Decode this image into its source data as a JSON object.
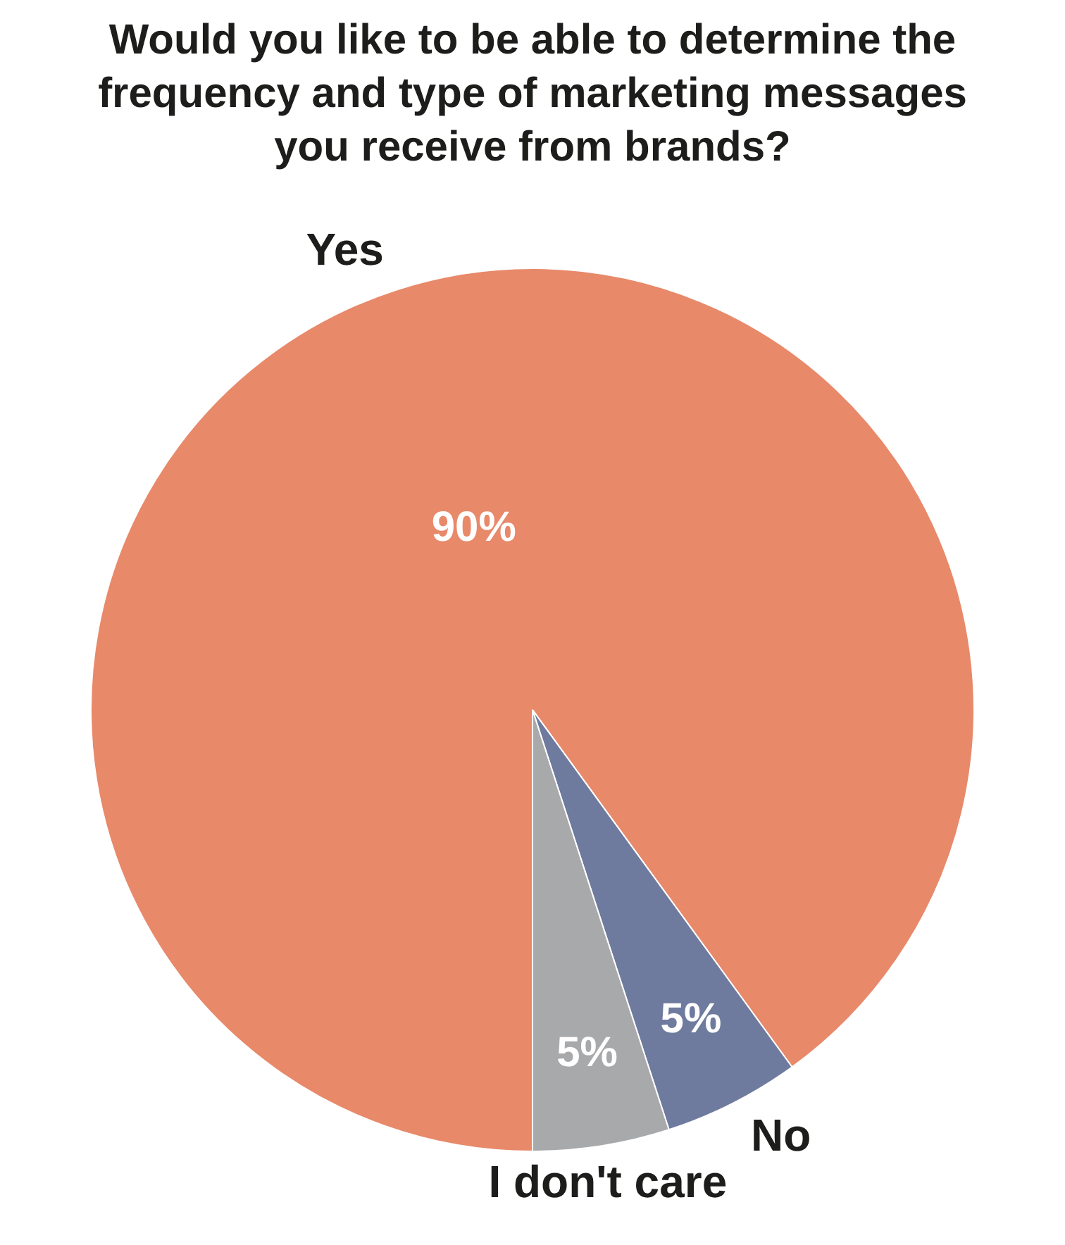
{
  "chart_data": {
    "type": "pie",
    "title": "Would you like to be able to determine the frequency and type of marketing messages you receive from brands?",
    "categories": [
      "Yes",
      "No",
      "I don't care"
    ],
    "values": [
      90,
      5,
      5
    ],
    "colors": [
      "#e8896a",
      "#6f7b9e",
      "#a8a9ab"
    ],
    "value_labels": [
      "90%",
      "5%",
      "5%"
    ],
    "legend": false
  }
}
